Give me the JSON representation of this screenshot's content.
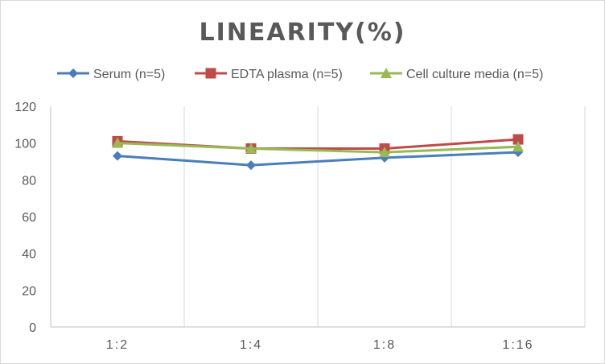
{
  "chart_data": {
    "type": "line",
    "title": "LINEARITY(%)",
    "categories": [
      "1:2",
      "1:4",
      "1:8",
      "1:16"
    ],
    "ylim": [
      0,
      120
    ],
    "yticks": [
      0,
      20,
      40,
      60,
      80,
      100,
      120
    ],
    "grid": "vertical",
    "legend_position": "top",
    "series": [
      {
        "name": "Serum (n=5)",
        "color": "#4a7ebb",
        "marker": "diamond",
        "values": [
          93,
          88,
          92,
          95
        ]
      },
      {
        "name": "EDTA plasma (n=5)",
        "color": "#be4b48",
        "marker": "square",
        "values": [
          101,
          97,
          97,
          102
        ]
      },
      {
        "name": "Cell culture media (n=5)",
        "color": "#98b954",
        "marker": "triangle",
        "values": [
          100,
          97,
          95,
          98
        ]
      }
    ]
  }
}
